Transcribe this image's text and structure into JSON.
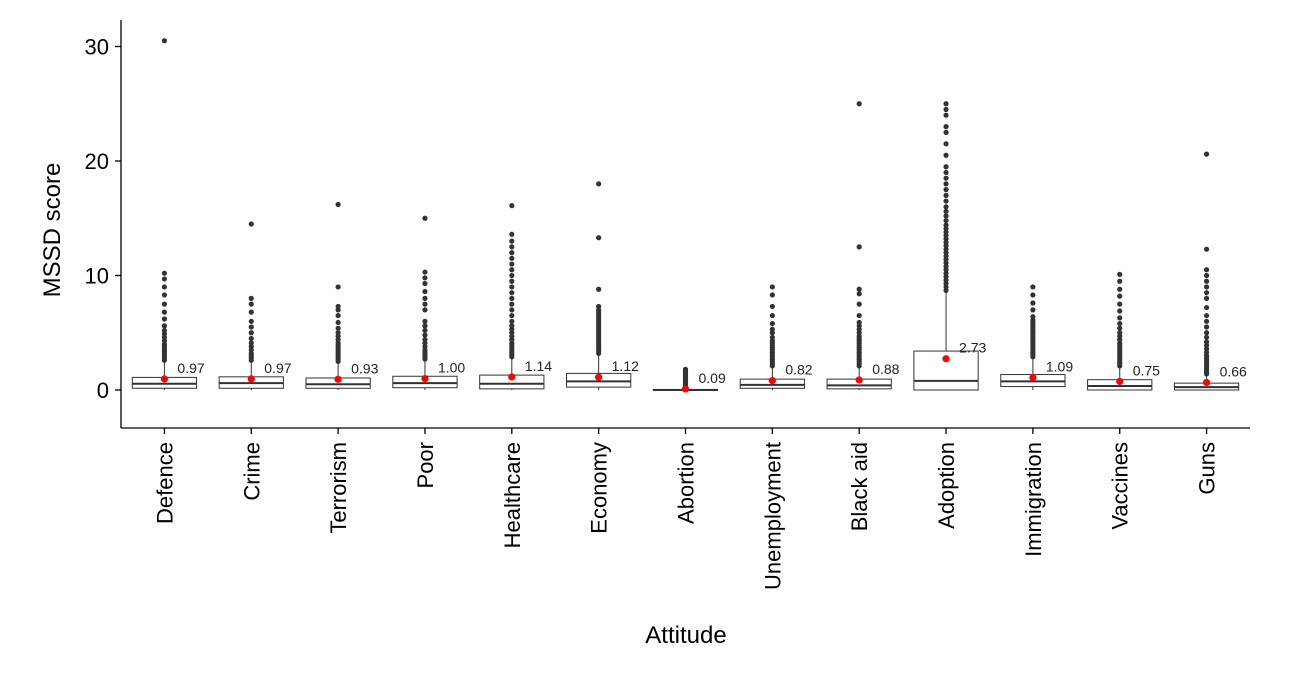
{
  "chart_data": {
    "type": "box",
    "xlabel": "Attitude",
    "ylabel": "MSSD score",
    "ylim": [
      -3.5,
      32
    ],
    "yticks": [
      0,
      10,
      20,
      30
    ],
    "grid": false,
    "colors": {
      "box_stroke": "#333333",
      "outlier": "#333333",
      "mean": "#ff0000",
      "axis": "#000000"
    },
    "categories": [
      {
        "name": "Defence",
        "q1": 0.15,
        "median": 0.55,
        "q3": 1.1,
        "whisker_low": 0,
        "whisker_high": 2.5,
        "mean": 0.97,
        "mean_label": "0.97",
        "outliers": [
          2.6,
          2.8,
          3.0,
          3.2,
          3.4,
          3.6,
          3.8,
          4.0,
          4.3,
          4.6,
          4.9,
          5.2,
          5.6,
          6.2,
          6.8,
          7.5,
          8.3,
          9.0,
          9.7,
          10.2,
          30.5
        ]
      },
      {
        "name": "Crime",
        "q1": 0.15,
        "median": 0.6,
        "q3": 1.15,
        "whisker_low": 0,
        "whisker_high": 2.5,
        "mean": 0.97,
        "mean_label": "0.97",
        "outliers": [
          2.6,
          2.8,
          3.0,
          3.2,
          3.5,
          3.8,
          4.1,
          4.5,
          5.0,
          5.5,
          6.0,
          6.8,
          7.5,
          8.0,
          14.5
        ]
      },
      {
        "name": "Terrorism",
        "q1": 0.15,
        "median": 0.5,
        "q3": 1.05,
        "whisker_low": 0,
        "whisker_high": 2.4,
        "mean": 0.93,
        "mean_label": "0.93",
        "outliers": [
          2.5,
          2.7,
          2.9,
          3.1,
          3.3,
          3.5,
          3.7,
          3.9,
          4.1,
          4.4,
          4.7,
          5.0,
          5.4,
          5.9,
          6.5,
          7.0,
          7.3,
          9.0,
          16.2
        ]
      },
      {
        "name": "Poor",
        "q1": 0.2,
        "median": 0.6,
        "q3": 1.2,
        "whisker_low": 0,
        "whisker_high": 2.6,
        "mean": 1.0,
        "mean_label": "1.00",
        "outliers": [
          2.7,
          2.9,
          3.1,
          3.3,
          3.5,
          3.8,
          4.1,
          4.4,
          4.8,
          5.2,
          5.6,
          6.0,
          7.0,
          7.5,
          8.0,
          8.6,
          9.3,
          9.8,
          10.3,
          15.0
        ]
      },
      {
        "name": "Healthcare",
        "q1": 0.1,
        "median": 0.55,
        "q3": 1.3,
        "whisker_low": 0,
        "whisker_high": 2.8,
        "mean": 1.14,
        "mean_label": "1.14",
        "outliers": [
          2.9,
          3.1,
          3.3,
          3.5,
          3.7,
          3.9,
          4.1,
          4.4,
          4.7,
          5.0,
          5.3,
          5.6,
          6.0,
          6.5,
          7.0,
          7.5,
          8.0,
          8.5,
          9.0,
          9.5,
          10.0,
          10.5,
          11.0,
          11.5,
          12.0,
          12.5,
          13.0,
          13.6,
          16.1
        ]
      },
      {
        "name": "Economy",
        "q1": 0.25,
        "median": 0.75,
        "q3": 1.45,
        "whisker_low": 0,
        "whisker_high": 3.1,
        "mean": 1.12,
        "mean_label": "1.12",
        "outliers": [
          3.2,
          3.4,
          3.6,
          3.8,
          4.0,
          4.2,
          4.4,
          4.6,
          4.8,
          5.0,
          5.2,
          5.4,
          5.6,
          5.8,
          6.0,
          6.2,
          6.4,
          6.6,
          6.8,
          7.0,
          7.3,
          8.8,
          13.3,
          18.0
        ]
      },
      {
        "name": "Abortion",
        "q1": 0,
        "median": 0,
        "q3": 0.05,
        "whisker_low": 0,
        "whisker_high": 0.1,
        "mean": 0.09,
        "mean_label": "0.09",
        "outliers": [
          0.2,
          0.3,
          0.4,
          0.5,
          0.6,
          0.7,
          0.8,
          0.9,
          1.0,
          1.1,
          1.2,
          1.3,
          1.4,
          1.5,
          1.6,
          1.7,
          1.8
        ]
      },
      {
        "name": "Unemployment",
        "q1": 0.15,
        "median": 0.45,
        "q3": 0.95,
        "whisker_low": 0,
        "whisker_high": 2.0,
        "mean": 0.82,
        "mean_label": "0.82",
        "outliers": [
          2.1,
          2.3,
          2.5,
          2.7,
          2.9,
          3.1,
          3.3,
          3.5,
          3.7,
          3.9,
          4.1,
          4.3,
          4.6,
          5.0,
          5.3,
          5.8,
          6.5,
          7.3,
          8.3,
          9.0
        ]
      },
      {
        "name": "Black aid",
        "q1": 0.1,
        "median": 0.4,
        "q3": 0.95,
        "whisker_low": 0,
        "whisker_high": 2.0,
        "mean": 0.88,
        "mean_label": "0.88",
        "outliers": [
          2.1,
          2.3,
          2.5,
          2.7,
          2.9,
          3.1,
          3.3,
          3.5,
          3.7,
          3.9,
          4.1,
          4.3,
          4.5,
          4.7,
          5.0,
          5.3,
          5.6,
          5.9,
          6.5,
          7.5,
          8.4,
          8.8,
          12.5,
          25.0
        ]
      },
      {
        "name": "Adoption",
        "q1": 0,
        "median": 0.8,
        "q3": 3.4,
        "whisker_low": 0,
        "whisker_high": 8.5,
        "mean": 2.73,
        "mean_label": "2.73",
        "outliers": [
          8.7,
          9.0,
          9.3,
          9.6,
          9.9,
          10.2,
          10.5,
          10.8,
          11.1,
          11.4,
          11.7,
          12.0,
          12.3,
          12.6,
          12.9,
          13.2,
          13.5,
          13.8,
          14.1,
          14.4,
          14.8,
          15.2,
          15.6,
          16.0,
          16.5,
          17.0,
          17.5,
          18.0,
          18.5,
          19.0,
          19.5,
          20.5,
          21.5,
          22.5,
          23.0,
          24.0,
          24.5,
          25.0
        ]
      },
      {
        "name": "Immigration",
        "q1": 0.3,
        "median": 0.75,
        "q3": 1.35,
        "whisker_low": 0,
        "whisker_high": 2.8,
        "mean": 1.09,
        "mean_label": "1.09",
        "outliers": [
          2.9,
          3.1,
          3.3,
          3.5,
          3.7,
          3.9,
          4.1,
          4.3,
          4.5,
          4.7,
          4.9,
          5.1,
          5.3,
          5.5,
          5.7,
          5.9,
          6.1,
          6.4,
          7.0,
          7.6,
          8.3,
          9.0
        ]
      },
      {
        "name": "Vaccines",
        "q1": 0,
        "median": 0.35,
        "q3": 0.9,
        "whisker_low": 0,
        "whisker_high": 2.0,
        "mean": 0.75,
        "mean_label": "0.75",
        "outliers": [
          2.1,
          2.3,
          2.5,
          2.7,
          2.9,
          3.1,
          3.3,
          3.5,
          3.7,
          3.9,
          4.1,
          4.4,
          4.7,
          5.0,
          5.4,
          5.8,
          6.3,
          6.9,
          7.5,
          8.2,
          8.8,
          9.5,
          10.1
        ]
      },
      {
        "name": "Guns",
        "q1": 0,
        "median": 0.25,
        "q3": 0.6,
        "whisker_low": 0,
        "whisker_high": 1.3,
        "mean": 0.66,
        "mean_label": "0.66",
        "outliers": [
          1.4,
          1.6,
          1.8,
          2.0,
          2.2,
          2.4,
          2.6,
          2.8,
          3.0,
          3.3,
          3.6,
          3.9,
          4.2,
          4.6,
          5.0,
          5.5,
          6.0,
          6.5,
          7.2,
          8.0,
          8.5,
          9.0,
          9.5,
          10.0,
          10.5,
          12.3,
          20.6
        ]
      }
    ]
  }
}
